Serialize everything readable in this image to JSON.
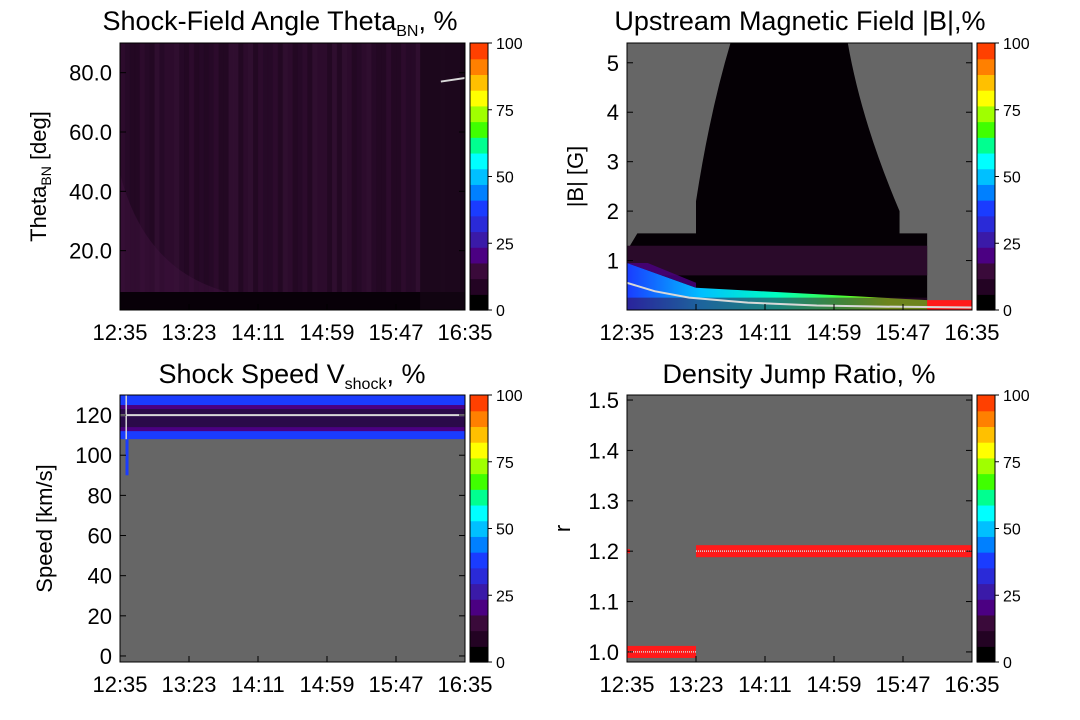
{
  "figure": {
    "colorscale": [
      "#000000",
      "#230323",
      "#3a0a3a",
      "#4b0082",
      "#3a1aa8",
      "#2a2ad8",
      "#1a3cff",
      "#0080ff",
      "#00c0ff",
      "#00ffff",
      "#00ff90",
      "#40ff00",
      "#a0ff00",
      "#ffff00",
      "#ffc000",
      "#ff8000",
      "#ff4000"
    ],
    "panel_bg": "#666666",
    "line_color": "#d8d8d8",
    "cb_ticks": [
      "0",
      "25",
      "50",
      "75",
      "100"
    ],
    "time_ticks": [
      "12:35",
      "13:23",
      "14:11",
      "14:59",
      "15:47",
      "16:35"
    ]
  },
  "chart_data": [
    {
      "type": "heatmap",
      "title": "Shock-Field Angle Theta",
      "title_sub": "BN",
      "title_suffix": ", %",
      "ylabel": "Theta",
      "ylabel_sub": "BN",
      "ylabel_suffix": " [deg]",
      "x_ticks": [
        "12:35",
        "13:23",
        "14:11",
        "14:59",
        "15:47",
        "16:35"
      ],
      "ylim": [
        0,
        90
      ],
      "y_ticks": [
        {
          "v": 20,
          "label": "20.0"
        },
        {
          "v": 40,
          "label": "40.0"
        },
        {
          "v": 60,
          "label": "60.0"
        },
        {
          "v": 80,
          "label": "80.0"
        }
      ],
      "colorbar": {
        "min": 0,
        "max": 100
      },
      "fill_level": 0.07,
      "trace": [
        [
          0.93,
          77.0
        ],
        [
          1.0,
          78.2
        ]
      ]
    },
    {
      "type": "heatmap",
      "title": "Upstream Magnetic Field |B|,%",
      "ylabel": "|B| [G]",
      "x_ticks": [
        "12:35",
        "13:23",
        "14:11",
        "14:59",
        "15:47",
        "16:35"
      ],
      "ylim": [
        0,
        5.4
      ],
      "y_ticks": [
        {
          "v": 1,
          "label": "1"
        },
        {
          "v": 2,
          "label": "2"
        },
        {
          "v": 3,
          "label": "3"
        },
        {
          "v": 4,
          "label": "4"
        },
        {
          "v": 5,
          "label": "5"
        }
      ],
      "colorbar": {
        "min": 0,
        "max": 100
      },
      "trace": [
        [
          0.0,
          0.55
        ],
        [
          0.08,
          0.38
        ],
        [
          0.18,
          0.25
        ],
        [
          0.35,
          0.15
        ],
        [
          0.55,
          0.09
        ],
        [
          0.72,
          0.07
        ],
        [
          0.86,
          0.06
        ],
        [
          1.0,
          0.05
        ]
      ]
    },
    {
      "type": "heatmap",
      "title": "Shock Speed V",
      "title_sub": "shock",
      "title_suffix": ", %",
      "ylabel": "Speed [km/s]",
      "x_ticks": [
        "12:35",
        "13:23",
        "14:11",
        "14:59",
        "15:47",
        "16:35"
      ],
      "ylim": [
        -3,
        130
      ],
      "y_ticks": [
        {
          "v": 0,
          "label": "0"
        },
        {
          "v": 20,
          "label": "20"
        },
        {
          "v": 40,
          "label": "40"
        },
        {
          "v": 60,
          "label": "60"
        },
        {
          "v": 80,
          "label": "80"
        },
        {
          "v": 100,
          "label": "100"
        },
        {
          "v": 120,
          "label": "120"
        }
      ],
      "colorbar": {
        "min": 0,
        "max": 100
      },
      "band": {
        "y0": 108,
        "y1": 130
      },
      "trace": [
        [
          0.0,
          120
        ],
        [
          1.0,
          120
        ]
      ]
    },
    {
      "type": "heatmap",
      "title": "Density Jump Ratio, %",
      "ylabel": "r",
      "x_ticks": [
        "12:35",
        "13:23",
        "14:11",
        "14:59",
        "15:47",
        "16:35"
      ],
      "ylim": [
        0.98,
        1.51
      ],
      "y_ticks": [
        {
          "v": 1.0,
          "label": "1.0"
        },
        {
          "v": 1.1,
          "label": "1.1"
        },
        {
          "v": 1.2,
          "label": "1.2"
        },
        {
          "v": 1.3,
          "label": "1.3"
        },
        {
          "v": 1.4,
          "label": "1.4"
        },
        {
          "v": 1.5,
          "label": "1.5"
        }
      ],
      "colorbar": {
        "min": 0,
        "max": 100
      },
      "segments": [
        {
          "x0": 0.0,
          "x1": 0.2,
          "y": 1.0
        },
        {
          "x0": 0.2,
          "x1": 1.0,
          "y": 1.2
        }
      ]
    }
  ]
}
